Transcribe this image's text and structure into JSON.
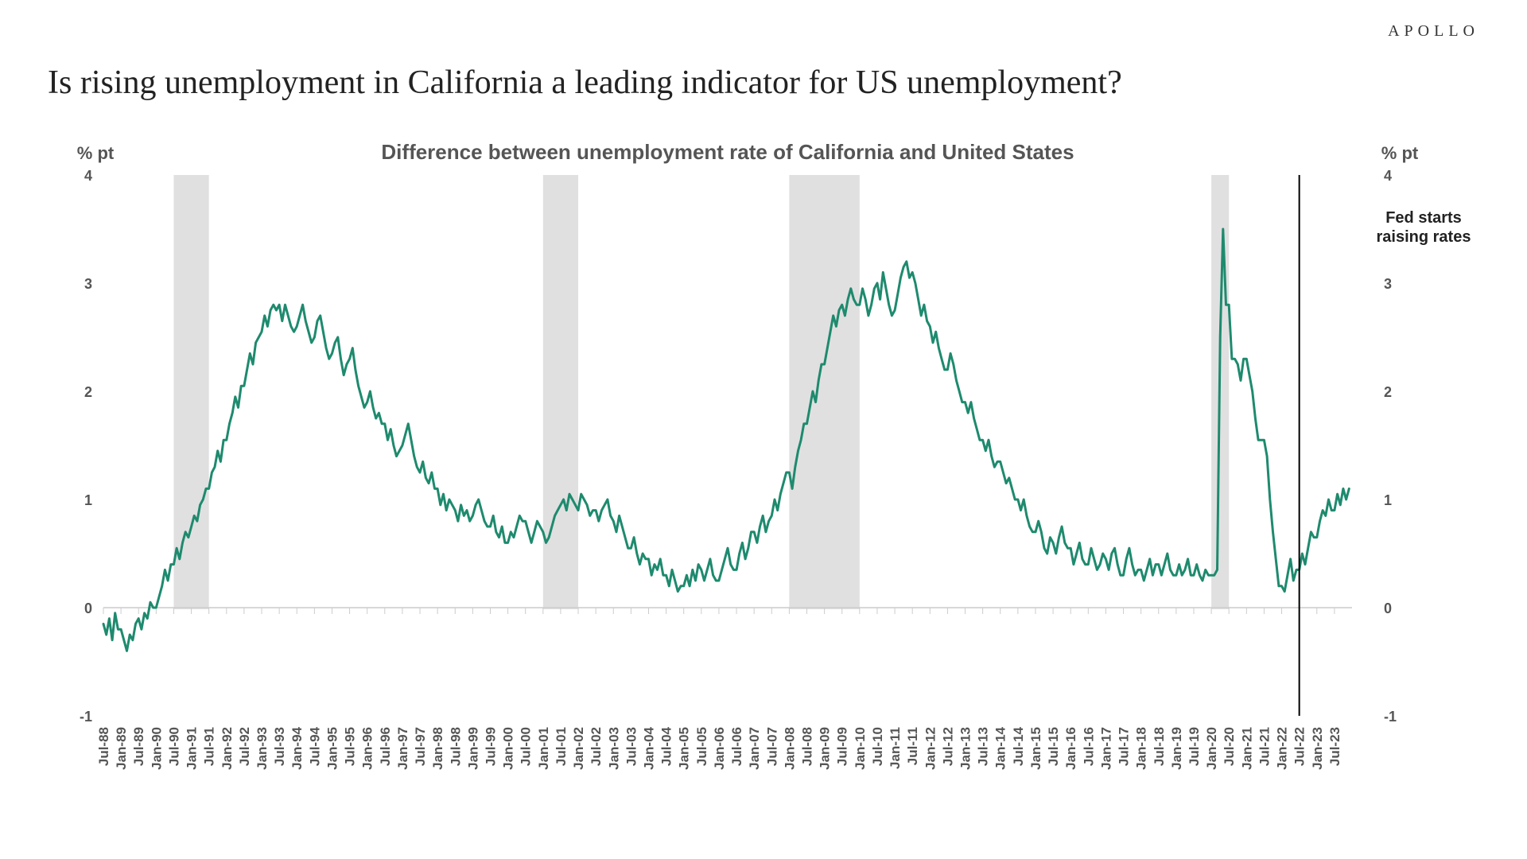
{
  "brand": "APOLLO",
  "title": "Is rising unemployment in California a leading indicator for US unemployment?",
  "chart": {
    "type": "line",
    "subtitle": "Difference between unemployment rate of California and United States",
    "y_axis_label": "% pt",
    "ylim": [
      -1,
      4
    ],
    "yticks": [
      -1,
      0,
      1,
      2,
      3,
      4
    ],
    "line_color": "#1e8a6e",
    "line_width": 3,
    "background_color": "#ffffff",
    "zero_line_color": "#cccccc",
    "tick_color": "#cccccc",
    "recession_band_color": "#e0e0e0",
    "axis_text_color": "#555555",
    "subtitle_color": "#555555",
    "subtitle_fontsize": 26,
    "axis_label_fontsize": 22,
    "tick_label_fontsize": 18,
    "xlabel_fontsize": 17,
    "annotation": {
      "text_line1": "Fed starts",
      "text_line2": "raising rates",
      "x_index": 68,
      "line_color": "#000000"
    },
    "recession_bands": [
      {
        "start_index": 4,
        "end_index": 6
      },
      {
        "start_index": 25,
        "end_index": 27
      },
      {
        "start_index": 39,
        "end_index": 43
      },
      {
        "start_index": 63,
        "end_index": 64
      }
    ],
    "x_labels": [
      "Jul-88",
      "Jan-89",
      "Jul-89",
      "Jan-90",
      "Jul-90",
      "Jan-91",
      "Jul-91",
      "Jan-92",
      "Jul-92",
      "Jan-93",
      "Jul-93",
      "Jan-94",
      "Jul-94",
      "Jan-95",
      "Jul-95",
      "Jan-96",
      "Jul-96",
      "Jan-97",
      "Jul-97",
      "Jan-98",
      "Jul-98",
      "Jan-99",
      "Jul-99",
      "Jan-00",
      "Jul-00",
      "Jan-01",
      "Jul-01",
      "Jan-02",
      "Jul-02",
      "Jan-03",
      "Jul-03",
      "Jan-04",
      "Jul-04",
      "Jan-05",
      "Jul-05",
      "Jan-06",
      "Jul-06",
      "Jan-07",
      "Jul-07",
      "Jan-08",
      "Jul-08",
      "Jan-09",
      "Jul-09",
      "Jan-10",
      "Jul-10",
      "Jan-11",
      "Jul-11",
      "Jan-12",
      "Jul-12",
      "Jan-13",
      "Jul-13",
      "Jan-14",
      "Jul-14",
      "Jan-15",
      "Jul-15",
      "Jan-16",
      "Jul-16",
      "Jan-17",
      "Jul-17",
      "Jan-18",
      "Jul-18",
      "Jan-19",
      "Jul-19",
      "Jan-20",
      "Jul-20",
      "Jan-21",
      "Jul-21",
      "Jan-22",
      "Jul-22",
      "Jan-23",
      "Jul-23"
    ],
    "values": [
      [
        -0.15,
        -0.25,
        -0.1,
        -0.3,
        -0.05,
        -0.2
      ],
      [
        -0.2,
        -0.3,
        -0.4,
        -0.25,
        -0.3,
        -0.15
      ],
      [
        -0.1,
        -0.2,
        -0.05,
        -0.1,
        0.05,
        0.0
      ],
      [
        0.0,
        0.1,
        0.2,
        0.35,
        0.25,
        0.4
      ],
      [
        0.4,
        0.55,
        0.45,
        0.6,
        0.7,
        0.65
      ],
      [
        0.75,
        0.85,
        0.8,
        0.95,
        1.0,
        1.1
      ],
      [
        1.1,
        1.25,
        1.3,
        1.45,
        1.35,
        1.55
      ],
      [
        1.55,
        1.7,
        1.8,
        1.95,
        1.85,
        2.05
      ],
      [
        2.05,
        2.2,
        2.35,
        2.25,
        2.45,
        2.5
      ],
      [
        2.55,
        2.7,
        2.6,
        2.75,
        2.8,
        2.75
      ],
      [
        2.8,
        2.65,
        2.8,
        2.7,
        2.6,
        2.55
      ],
      [
        2.6,
        2.7,
        2.8,
        2.65,
        2.55,
        2.45
      ],
      [
        2.5,
        2.65,
        2.7,
        2.55,
        2.4,
        2.3
      ],
      [
        2.35,
        2.45,
        2.5,
        2.3,
        2.15,
        2.25
      ],
      [
        2.3,
        2.4,
        2.2,
        2.05,
        1.95,
        1.85
      ],
      [
        1.9,
        2.0,
        1.85,
        1.75,
        1.8,
        1.7
      ],
      [
        1.7,
        1.55,
        1.65,
        1.5,
        1.4,
        1.45
      ],
      [
        1.5,
        1.6,
        1.7,
        1.55,
        1.4,
        1.3
      ],
      [
        1.25,
        1.35,
        1.2,
        1.15,
        1.25,
        1.1
      ],
      [
        1.1,
        0.95,
        1.05,
        0.9,
        1.0,
        0.95
      ],
      [
        0.9,
        0.8,
        0.95,
        0.85,
        0.9,
        0.8
      ],
      [
        0.85,
        0.95,
        1.0,
        0.9,
        0.8,
        0.75
      ],
      [
        0.75,
        0.85,
        0.7,
        0.65,
        0.75,
        0.6
      ],
      [
        0.6,
        0.7,
        0.65,
        0.75,
        0.85,
        0.8
      ],
      [
        0.8,
        0.7,
        0.6,
        0.7,
        0.8,
        0.75
      ],
      [
        0.7,
        0.6,
        0.65,
        0.75,
        0.85,
        0.9
      ],
      [
        0.95,
        1.0,
        0.9,
        1.05,
        1.0,
        0.95
      ],
      [
        0.9,
        1.05,
        1.0,
        0.95,
        0.85,
        0.9
      ],
      [
        0.9,
        0.8,
        0.9,
        0.95,
        1.0,
        0.85
      ],
      [
        0.8,
        0.7,
        0.85,
        0.75,
        0.65,
        0.55
      ],
      [
        0.55,
        0.65,
        0.5,
        0.4,
        0.5,
        0.45
      ],
      [
        0.45,
        0.3,
        0.4,
        0.35,
        0.45,
        0.3
      ],
      [
        0.3,
        0.2,
        0.35,
        0.25,
        0.15,
        0.2
      ],
      [
        0.2,
        0.3,
        0.2,
        0.35,
        0.25,
        0.4
      ],
      [
        0.35,
        0.25,
        0.35,
        0.45,
        0.3,
        0.25
      ],
      [
        0.25,
        0.35,
        0.45,
        0.55,
        0.4,
        0.35
      ],
      [
        0.35,
        0.5,
        0.6,
        0.45,
        0.55,
        0.7
      ],
      [
        0.7,
        0.6,
        0.75,
        0.85,
        0.7,
        0.8
      ],
      [
        0.85,
        1.0,
        0.9,
        1.05,
        1.15,
        1.25
      ],
      [
        1.25,
        1.1,
        1.3,
        1.45,
        1.55,
        1.7
      ],
      [
        1.7,
        1.85,
        2.0,
        1.9,
        2.1,
        2.25
      ],
      [
        2.25,
        2.4,
        2.55,
        2.7,
        2.6,
        2.75
      ],
      [
        2.8,
        2.7,
        2.85,
        2.95,
        2.85,
        2.8
      ],
      [
        2.8,
        2.95,
        2.85,
        2.7,
        2.8,
        2.95
      ],
      [
        3.0,
        2.85,
        3.1,
        2.95,
        2.8,
        2.7
      ],
      [
        2.75,
        2.9,
        3.05,
        3.15,
        3.2,
        3.05
      ],
      [
        3.1,
        3.0,
        2.85,
        2.7,
        2.8,
        2.65
      ],
      [
        2.6,
        2.45,
        2.55,
        2.4,
        2.3,
        2.2
      ],
      [
        2.2,
        2.35,
        2.25,
        2.1,
        2.0,
        1.9
      ],
      [
        1.9,
        1.8,
        1.9,
        1.75,
        1.65,
        1.55
      ],
      [
        1.55,
        1.45,
        1.55,
        1.4,
        1.3,
        1.35
      ],
      [
        1.35,
        1.25,
        1.15,
        1.2,
        1.1,
        1.0
      ],
      [
        1.0,
        0.9,
        1.0,
        0.85,
        0.75,
        0.7
      ],
      [
        0.7,
        0.8,
        0.7,
        0.55,
        0.5,
        0.65
      ],
      [
        0.6,
        0.5,
        0.65,
        0.75,
        0.6,
        0.55
      ],
      [
        0.55,
        0.4,
        0.5,
        0.6,
        0.45,
        0.4
      ],
      [
        0.4,
        0.55,
        0.45,
        0.35,
        0.4,
        0.5
      ],
      [
        0.45,
        0.35,
        0.5,
        0.55,
        0.4,
        0.3
      ],
      [
        0.3,
        0.45,
        0.55,
        0.4,
        0.3,
        0.35
      ],
      [
        0.35,
        0.25,
        0.35,
        0.45,
        0.3,
        0.4
      ],
      [
        0.4,
        0.3,
        0.4,
        0.5,
        0.35,
        0.3
      ],
      [
        0.3,
        0.4,
        0.3,
        0.35,
        0.45,
        0.3
      ],
      [
        0.3,
        0.4,
        0.3,
        0.25,
        0.35,
        0.3
      ],
      [
        0.3,
        0.3,
        0.35,
        2.5,
        3.5,
        2.8
      ],
      [
        2.8,
        2.3,
        2.3,
        2.25,
        2.1,
        2.3
      ],
      [
        2.3,
        2.15,
        2.0,
        1.75,
        1.55,
        1.55
      ],
      [
        1.55,
        1.4,
        1.0,
        0.7,
        0.45,
        0.2
      ],
      [
        0.2,
        0.15,
        0.3,
        0.45,
        0.25,
        0.35
      ],
      [
        0.35,
        0.5,
        0.4,
        0.55,
        0.7,
        0.65
      ],
      [
        0.65,
        0.8,
        0.9,
        0.85,
        1.0,
        0.9
      ],
      [
        0.9,
        1.05,
        0.95,
        1.1,
        1.0,
        1.1
      ]
    ]
  }
}
